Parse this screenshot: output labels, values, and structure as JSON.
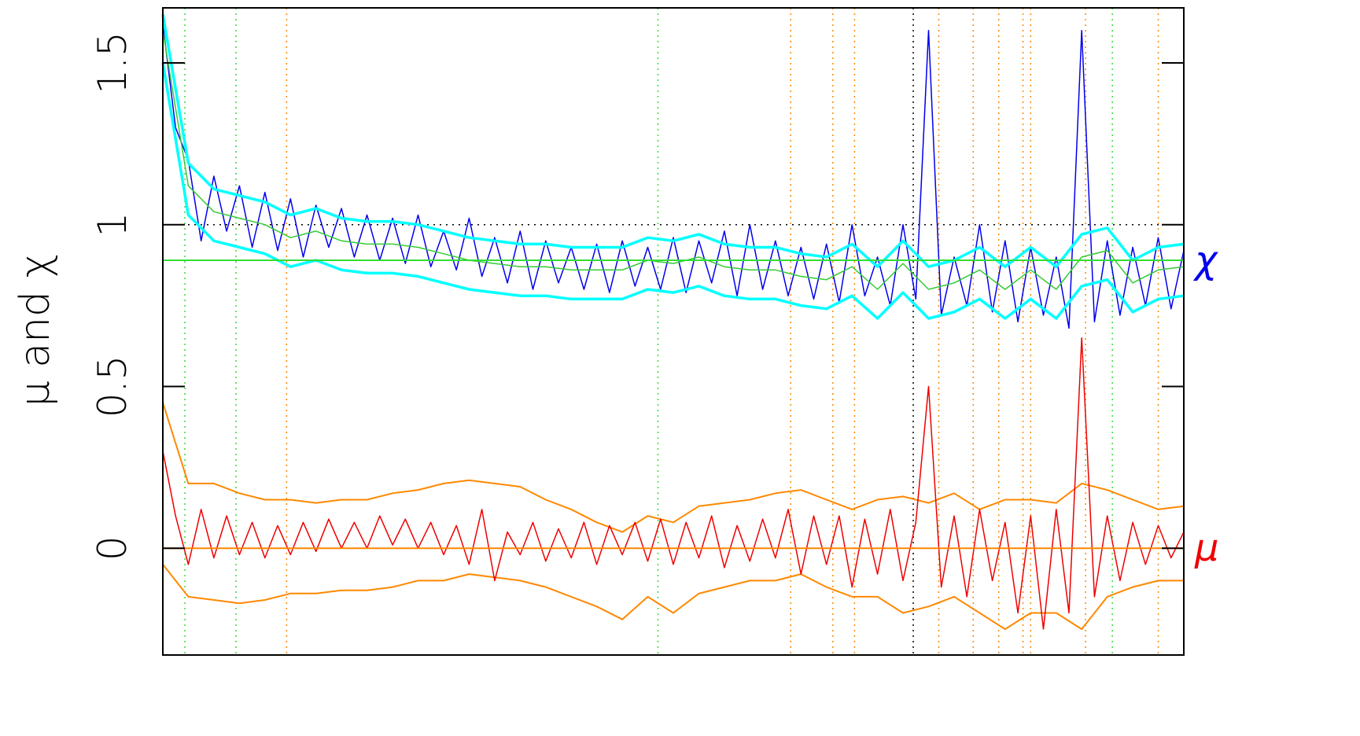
{
  "chart_data": {
    "type": "line",
    "y_label": "μ and χ",
    "right_labels": [
      {
        "text": "χ",
        "value": 0.89,
        "color": "#0000ee"
      },
      {
        "text": "μ",
        "value": 0,
        "color": "#ee0000"
      }
    ],
    "xlim": [
      0,
      80
    ],
    "ylim": [
      -0.33,
      1.67
    ],
    "yticks": [
      0,
      0.5,
      1,
      1.5
    ],
    "series": [
      {
        "name": "mu upper",
        "color": "#ff8800",
        "width": 2,
        "x": [
          0,
          2,
          4,
          6,
          8,
          10,
          12,
          14,
          16,
          18,
          20,
          22,
          24,
          26,
          28,
          30,
          32,
          34,
          36,
          38,
          40,
          42,
          44,
          46,
          48,
          50,
          52,
          54,
          56,
          58,
          60,
          62,
          64,
          66,
          68,
          70,
          72,
          74,
          76,
          78,
          80
        ],
        "values": [
          0.45,
          0.2,
          0.2,
          0.17,
          0.15,
          0.15,
          0.14,
          0.15,
          0.15,
          0.17,
          0.18,
          0.2,
          0.21,
          0.2,
          0.19,
          0.15,
          0.12,
          0.08,
          0.05,
          0.1,
          0.08,
          0.13,
          0.14,
          0.15,
          0.17,
          0.18,
          0.15,
          0.12,
          0.15,
          0.16,
          0.14,
          0.17,
          0.12,
          0.15,
          0.15,
          0.14,
          0.2,
          0.18,
          0.15,
          0.12,
          0.13
        ]
      },
      {
        "name": "mu lower",
        "color": "#ff8800",
        "width": 2,
        "x": [
          0,
          2,
          4,
          6,
          8,
          10,
          12,
          14,
          16,
          18,
          20,
          22,
          24,
          26,
          28,
          30,
          32,
          34,
          36,
          38,
          40,
          42,
          44,
          46,
          48,
          50,
          52,
          54,
          56,
          58,
          60,
          62,
          64,
          66,
          68,
          70,
          72,
          74,
          76,
          78,
          80
        ],
        "values": [
          -0.05,
          -0.15,
          -0.16,
          -0.17,
          -0.16,
          -0.14,
          -0.14,
          -0.13,
          -0.13,
          -0.12,
          -0.1,
          -0.1,
          -0.08,
          -0.09,
          -0.1,
          -0.12,
          -0.15,
          -0.18,
          -0.22,
          -0.15,
          -0.2,
          -0.14,
          -0.12,
          -0.1,
          -0.1,
          -0.08,
          -0.12,
          -0.15,
          -0.15,
          -0.2,
          -0.18,
          -0.15,
          -0.2,
          -0.25,
          -0.2,
          -0.2,
          -0.25,
          -0.15,
          -0.12,
          -0.1,
          -0.1
        ]
      },
      {
        "name": "mu",
        "color": "#ee0000",
        "width": 1.5,
        "x": [
          0,
          1,
          2,
          3,
          4,
          5,
          6,
          7,
          8,
          9,
          10,
          11,
          12,
          13,
          14,
          15,
          16,
          17,
          18,
          19,
          20,
          21,
          22,
          23,
          24,
          25,
          26,
          27,
          28,
          29,
          30,
          31,
          32,
          33,
          34,
          35,
          36,
          37,
          38,
          39,
          40,
          41,
          42,
          43,
          44,
          45,
          46,
          47,
          48,
          49,
          50,
          51,
          52,
          53,
          54,
          55,
          56,
          57,
          58,
          59,
          60,
          61,
          62,
          63,
          64,
          65,
          66,
          67,
          68,
          69,
          70,
          71,
          72,
          73,
          74,
          75,
          76,
          77,
          78,
          79,
          80
        ],
        "values": [
          0.3,
          0.1,
          -0.05,
          0.12,
          -0.03,
          0.1,
          -0.02,
          0.08,
          -0.03,
          0.07,
          -0.02,
          0.08,
          -0.01,
          0.09,
          0.0,
          0.08,
          0.0,
          0.1,
          0.01,
          0.09,
          0.0,
          0.08,
          -0.02,
          0.07,
          -0.05,
          0.12,
          -0.1,
          0.05,
          -0.02,
          0.08,
          -0.04,
          0.06,
          -0.03,
          0.08,
          -0.05,
          0.07,
          -0.02,
          0.08,
          -0.04,
          0.09,
          -0.05,
          0.08,
          -0.03,
          0.1,
          -0.06,
          0.07,
          -0.04,
          0.09,
          -0.03,
          0.12,
          -0.08,
          0.1,
          -0.05,
          0.1,
          -0.12,
          0.09,
          -0.08,
          0.12,
          -0.1,
          0.08,
          0.5,
          -0.12,
          0.1,
          -0.15,
          0.12,
          -0.1,
          0.08,
          -0.2,
          0.1,
          -0.25,
          0.12,
          -0.2,
          0.65,
          -0.15,
          0.1,
          -0.1,
          0.08,
          -0.05,
          0.07,
          -0.03,
          0.05
        ]
      },
      {
        "name": "chi",
        "color": "#0000ee",
        "width": 1.5,
        "x": [
          0,
          1,
          2,
          3,
          4,
          5,
          6,
          7,
          8,
          9,
          10,
          11,
          12,
          13,
          14,
          15,
          16,
          17,
          18,
          19,
          20,
          21,
          22,
          23,
          24,
          25,
          26,
          27,
          28,
          29,
          30,
          31,
          32,
          33,
          34,
          35,
          36,
          37,
          38,
          39,
          40,
          41,
          42,
          43,
          44,
          45,
          46,
          47,
          48,
          49,
          50,
          51,
          52,
          53,
          54,
          55,
          56,
          57,
          58,
          59,
          60,
          61,
          62,
          63,
          64,
          65,
          66,
          67,
          68,
          69,
          70,
          71,
          72,
          73,
          74,
          75,
          76,
          77,
          78,
          79,
          80
        ],
        "values": [
          1.62,
          1.3,
          1.2,
          0.95,
          1.15,
          0.98,
          1.12,
          0.93,
          1.1,
          0.92,
          1.08,
          0.9,
          1.06,
          0.93,
          1.05,
          0.9,
          1.03,
          0.89,
          1.02,
          0.88,
          1.03,
          0.87,
          0.98,
          0.86,
          1.02,
          0.84,
          0.96,
          0.82,
          0.98,
          0.8,
          0.95,
          0.82,
          0.93,
          0.8,
          0.94,
          0.79,
          0.95,
          0.81,
          0.93,
          0.8,
          0.96,
          0.79,
          0.95,
          0.82,
          0.98,
          0.78,
          1.0,
          0.8,
          0.95,
          0.78,
          0.93,
          0.77,
          0.94,
          0.76,
          1.0,
          0.78,
          0.9,
          0.75,
          1.0,
          0.77,
          1.6,
          0.72,
          0.9,
          0.75,
          1.0,
          0.73,
          0.95,
          0.7,
          0.93,
          0.72,
          0.9,
          0.68,
          1.6,
          0.7,
          0.95,
          0.72,
          0.93,
          0.75,
          0.96,
          0.74,
          0.92
        ]
      },
      {
        "name": "chi upper",
        "color": "#00ffff",
        "width": 3.5,
        "x": [
          0,
          2,
          4,
          6,
          8,
          10,
          12,
          14,
          16,
          18,
          20,
          22,
          24,
          26,
          28,
          30,
          32,
          34,
          36,
          38,
          40,
          42,
          44,
          46,
          48,
          50,
          52,
          54,
          56,
          58,
          60,
          62,
          64,
          66,
          68,
          70,
          72,
          74,
          76,
          78,
          80
        ],
        "values": [
          1.65,
          1.19,
          1.11,
          1.09,
          1.07,
          1.03,
          1.05,
          1.02,
          1.01,
          1.01,
          1.0,
          0.98,
          0.96,
          0.95,
          0.94,
          0.94,
          0.93,
          0.93,
          0.93,
          0.96,
          0.95,
          0.97,
          0.94,
          0.93,
          0.93,
          0.91,
          0.9,
          0.94,
          0.87,
          0.95,
          0.87,
          0.89,
          0.93,
          0.87,
          0.93,
          0.87,
          0.97,
          0.99,
          0.89,
          0.93,
          0.94
        ]
      },
      {
        "name": "chi lower",
        "color": "#00ffff",
        "width": 3.5,
        "x": [
          0,
          2,
          4,
          6,
          8,
          10,
          12,
          14,
          16,
          18,
          20,
          22,
          24,
          26,
          28,
          30,
          32,
          34,
          36,
          38,
          40,
          42,
          44,
          46,
          48,
          50,
          52,
          54,
          56,
          58,
          60,
          62,
          64,
          66,
          68,
          70,
          72,
          74,
          76,
          78,
          80
        ],
        "values": [
          1.5,
          1.03,
          0.95,
          0.93,
          0.91,
          0.87,
          0.89,
          0.86,
          0.85,
          0.85,
          0.84,
          0.82,
          0.8,
          0.79,
          0.78,
          0.78,
          0.77,
          0.77,
          0.77,
          0.8,
          0.79,
          0.81,
          0.78,
          0.77,
          0.77,
          0.75,
          0.74,
          0.78,
          0.71,
          0.79,
          0.71,
          0.73,
          0.77,
          0.71,
          0.77,
          0.71,
          0.81,
          0.83,
          0.73,
          0.77,
          0.78
        ]
      },
      {
        "name": "chi smooth",
        "color": "#33cc33",
        "width": 1.5,
        "x": [
          0,
          2,
          4,
          6,
          8,
          10,
          12,
          14,
          16,
          18,
          20,
          22,
          24,
          26,
          28,
          30,
          32,
          34,
          36,
          38,
          40,
          42,
          44,
          46,
          48,
          50,
          52,
          54,
          56,
          58,
          60,
          62,
          64,
          66,
          68,
          70,
          72,
          74,
          76,
          78,
          80
        ],
        "values": [
          1.6,
          1.12,
          1.04,
          1.02,
          1.0,
          0.96,
          0.98,
          0.95,
          0.94,
          0.94,
          0.93,
          0.91,
          0.89,
          0.88,
          0.87,
          0.87,
          0.86,
          0.86,
          0.86,
          0.89,
          0.88,
          0.9,
          0.87,
          0.86,
          0.86,
          0.84,
          0.83,
          0.87,
          0.8,
          0.88,
          0.8,
          0.82,
          0.86,
          0.8,
          0.86,
          0.8,
          0.9,
          0.92,
          0.82,
          0.86,
          0.87
        ]
      }
    ],
    "hlines": [
      {
        "value": 1,
        "color": "#000000",
        "dash": true
      },
      {
        "value": 0.89,
        "color": "#33dd33",
        "dash": false
      },
      {
        "value": 0,
        "color": "#ff8800",
        "dash": false
      }
    ],
    "vlines": [
      {
        "x": 1.73,
        "color": "#33dd33"
      },
      {
        "x": 5.73,
        "color": "#33dd33"
      },
      {
        "x": 38.8,
        "color": "#33dd33"
      },
      {
        "x": 74.4,
        "color": "#33dd33"
      },
      {
        "x": 9.7,
        "color": "#ff8800"
      },
      {
        "x": 49.2,
        "color": "#ff8800"
      },
      {
        "x": 52.5,
        "color": "#ff8800"
      },
      {
        "x": 54.2,
        "color": "#ff8800"
      },
      {
        "x": 60.8,
        "color": "#ff8800"
      },
      {
        "x": 63.5,
        "color": "#ff8800"
      },
      {
        "x": 65.5,
        "color": "#ff8800"
      },
      {
        "x": 67.4,
        "color": "#ff8800"
      },
      {
        "x": 68.0,
        "color": "#ff8800"
      },
      {
        "x": 72.3,
        "color": "#ff8800"
      },
      {
        "x": 78.0,
        "color": "#ff8800"
      },
      {
        "x": 58.8,
        "color": "#000000"
      }
    ]
  }
}
